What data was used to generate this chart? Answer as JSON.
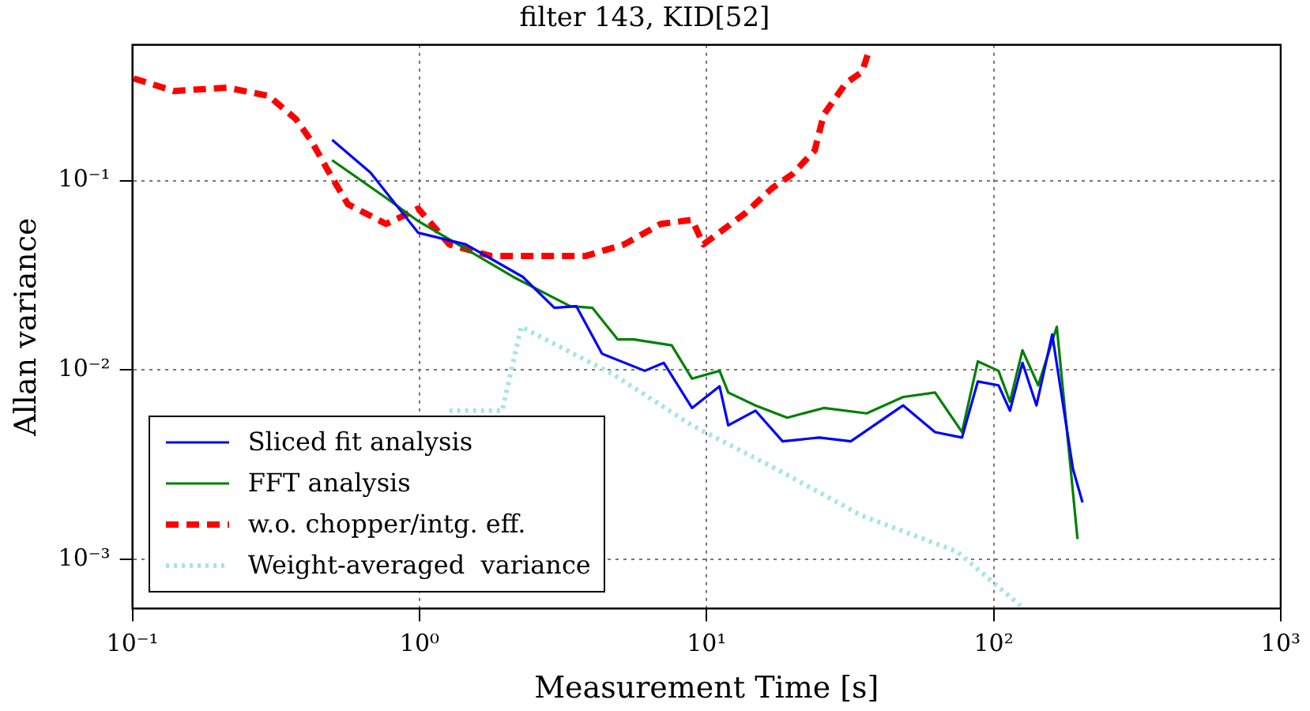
{
  "chart_data": {
    "type": "line",
    "title": "filter 143, KID[52]",
    "xlabel": "Measurement Time [s]",
    "ylabel": "Allan variance",
    "log": "xy",
    "grid": true,
    "legend": "bottom left",
    "marker": "none",
    "xlim": [
      0.1,
      1000
    ],
    "ylim": [
      0.00055,
      0.52
    ],
    "xticks": [
      {
        "value": 0.1,
        "label": "10⁻¹"
      },
      {
        "value": 1,
        "label": "10⁰"
      },
      {
        "value": 10,
        "label": "10¹"
      },
      {
        "value": 100,
        "label": "10²"
      },
      {
        "value": 1000,
        "label": "10³"
      }
    ],
    "yticks": [
      {
        "value": 0.001,
        "label": "10⁻³"
      },
      {
        "value": 0.01,
        "label": "10⁻²"
      },
      {
        "value": 0.1,
        "label": "10⁻¹"
      }
    ],
    "series": [
      {
        "name": "Sliced fit analysis",
        "color": "#0000ff",
        "line_style": "solid",
        "x": [
          0.496,
          0.675,
          0.99,
          1.45,
          2.29,
          2.95,
          3.52,
          4.32,
          6.09,
          7.1,
          8.9,
          11.1,
          11.9,
          14.8,
          18.4,
          24.7,
          31.8,
          48.4,
          62.5,
          77.6,
          88.1,
          104,
          114,
          126,
          141,
          160,
          189,
          204
        ],
        "values": [
          0.164,
          0.11,
          0.053,
          0.046,
          0.031,
          0.0213,
          0.0217,
          0.0122,
          0.0099,
          0.0109,
          0.0063,
          0.0082,
          0.0051,
          0.0061,
          0.0042,
          0.0044,
          0.0042,
          0.0065,
          0.0047,
          0.0044,
          0.0087,
          0.0083,
          0.0061,
          0.0109,
          0.0065,
          0.0154,
          0.003,
          0.002
        ]
      },
      {
        "name": "FFT analysis",
        "color": "#008000",
        "line_style": "solid",
        "x": [
          0.496,
          0.765,
          0.99,
          2.12,
          3.35,
          4.0,
          4.9,
          5.57,
          7.56,
          8.9,
          11.1,
          11.9,
          14.8,
          19.1,
          25.6,
          36.1,
          48.4,
          62.5,
          77.6,
          88.1,
          104,
          114,
          126,
          143,
          166,
          196
        ],
        "values": [
          0.128,
          0.081,
          0.061,
          0.031,
          0.0217,
          0.0213,
          0.0145,
          0.0145,
          0.0135,
          0.009,
          0.0099,
          0.0076,
          0.0065,
          0.0056,
          0.0063,
          0.0059,
          0.0072,
          0.0076,
          0.0047,
          0.0111,
          0.0099,
          0.0068,
          0.0127,
          0.0083,
          0.0169,
          0.00128
        ]
      },
      {
        "name": "w.o. chopper/intg. eff.",
        "color": "#ff0000",
        "line_style": "dashed",
        "x": [
          0.101,
          0.139,
          0.214,
          0.298,
          0.371,
          0.421,
          0.478,
          0.563,
          0.765,
          0.99,
          1.27,
          1.77,
          2.73,
          3.8,
          5.16,
          6.92,
          8.9,
          9.75,
          13.6,
          16.9,
          19.9,
          23.8,
          25.6,
          30.6,
          34.8,
          37
        ],
        "values": [
          0.346,
          0.297,
          0.309,
          0.28,
          0.211,
          0.161,
          0.114,
          0.075,
          0.059,
          0.071,
          0.046,
          0.04,
          0.04,
          0.04,
          0.046,
          0.059,
          0.062,
          0.046,
          0.067,
          0.091,
          0.108,
          0.144,
          0.223,
          0.327,
          0.374,
          0.498
        ]
      },
      {
        "name": "Weight-averaged  variance",
        "color": "#a8e4e4",
        "line_style": "dotted",
        "x": [
          1.27,
          1.94,
          2.26,
          3.1,
          4.72,
          8.9,
          17.5,
          34.8,
          74.6,
          124
        ],
        "values": [
          0.0061,
          0.0061,
          0.0169,
          0.0132,
          0.0095,
          0.0051,
          0.003,
          0.0017,
          0.0011,
          0.00057
        ]
      }
    ]
  }
}
